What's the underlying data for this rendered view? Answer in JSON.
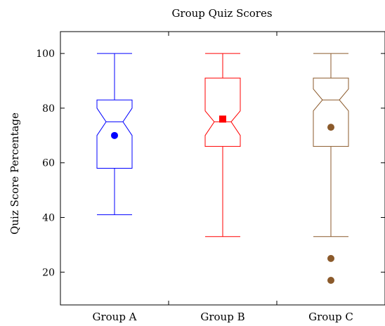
{
  "chart_data": {
    "type": "boxplot",
    "title": "Group Quiz Scores",
    "xlabel": "",
    "ylabel": "Quiz Score Percentage",
    "ylim": [
      8,
      108
    ],
    "yticks": [
      20,
      40,
      60,
      80,
      100
    ],
    "grid": false,
    "notched": true,
    "categories": [
      "Group A",
      "Group B",
      "Group C"
    ],
    "series": [
      {
        "category": "Group A",
        "color": "#0000ff",
        "whisker_low": 41,
        "q1": 58,
        "median": 75,
        "q3": 83,
        "whisker_high": 100,
        "notch_low": 70,
        "notch_high": 80,
        "mean": 70,
        "mean_marker": "circle",
        "outliers": []
      },
      {
        "category": "Group B",
        "color": "#ff0000",
        "whisker_low": 33,
        "q1": 66,
        "median": 75,
        "q3": 91,
        "whisker_high": 100,
        "notch_low": 70,
        "notch_high": 79,
        "mean": 76,
        "mean_marker": "square",
        "outliers": []
      },
      {
        "category": "Group C",
        "color": "#8b5a2b",
        "whisker_low": 33,
        "q1": 66,
        "median": 83,
        "q3": 91,
        "whisker_high": 100,
        "notch_low": 79,
        "notch_high": 87,
        "mean": 73,
        "mean_marker": "circle",
        "outliers": [
          25,
          17
        ]
      }
    ]
  }
}
